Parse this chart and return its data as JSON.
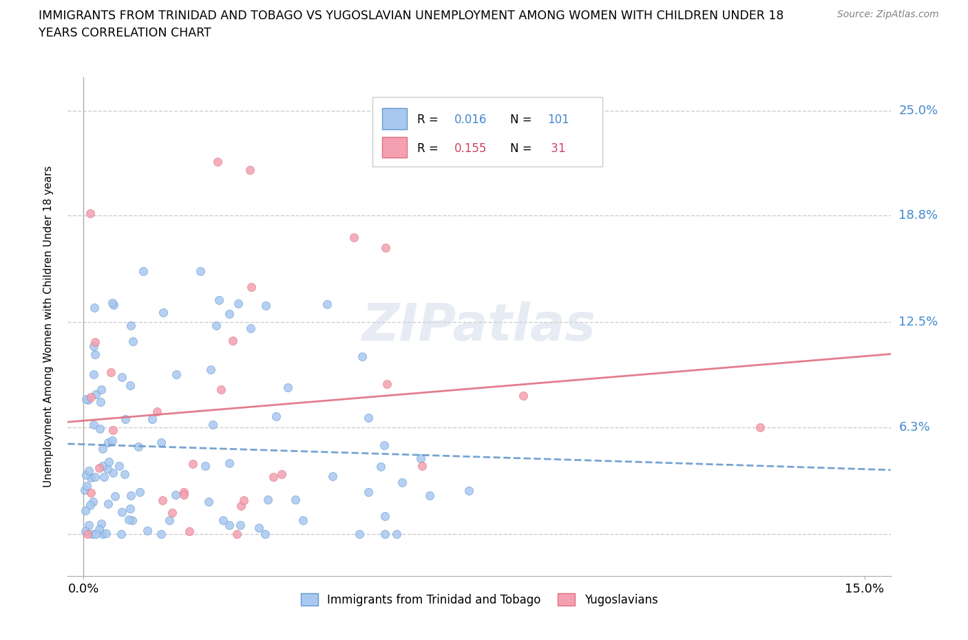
{
  "title_line1": "IMMIGRANTS FROM TRINIDAD AND TOBAGO VS YUGOSLAVIAN UNEMPLOYMENT AMONG WOMEN WITH CHILDREN UNDER 18",
  "title_line2": "YEARS CORRELATION CHART",
  "source": "Source: ZipAtlas.com",
  "ylabel": "Unemployment Among Women with Children Under 18 years",
  "legend_labels": [
    "Immigrants from Trinidad and Tobago",
    "Yugoslavians"
  ],
  "r_blue": 0.016,
  "n_blue": 101,
  "r_pink": 0.155,
  "n_pink": 31,
  "color_blue": "#a8c8f0",
  "color_pink": "#f4a0b0",
  "line_color_blue": "#6699cc",
  "line_color_pink": "#e07080",
  "text_color_blue": "#4488cc",
  "text_color_pink": "#cc4466",
  "grid_color": "#cccccc",
  "background_color": "#ffffff"
}
